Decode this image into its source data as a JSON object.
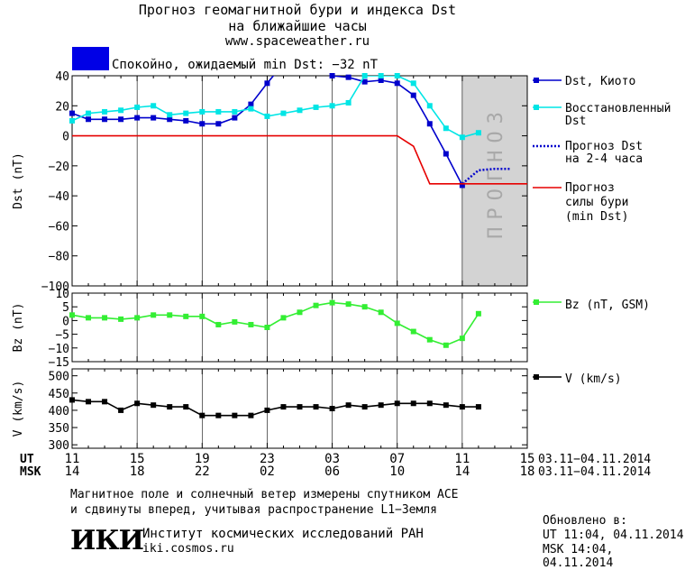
{
  "header": {
    "title_line1": "Прогноз геомагнитной бури и индекса Dst",
    "title_line2": "на ближайшие часы",
    "url": "www.spaceweather.ru",
    "status_color": "#0000e6",
    "status_text": "Спокойно, ожидаемый min Dst: −32 nT"
  },
  "time_axis": {
    "ut_label": "UT",
    "msk_label": "MSK",
    "ut_ticks": [
      "11",
      "15",
      "19",
      "23",
      "03",
      "07",
      "11",
      "15"
    ],
    "msk_ticks": [
      "14",
      "18",
      "22",
      "02",
      "06",
      "10",
      "14",
      "18"
    ],
    "date_range_ut": "03.11−04.11.2014",
    "date_range_msk": "03.11−04.11.2014"
  },
  "chart_data": [
    {
      "type": "line",
      "ylabel": "Dst (nT)",
      "ylim": [
        -100,
        40
      ],
      "yticks": [
        40,
        20,
        0,
        -20,
        -40,
        -60,
        -80,
        -100
      ],
      "xlim_hours": [
        11,
        39
      ],
      "forecast_region": {
        "x_start": 35,
        "x_end": 39,
        "label": "ПРОГНОЗ"
      },
      "series": [
        {
          "name": "Dst, Киото",
          "color": "#0000cc",
          "marker": "square",
          "x": [
            11,
            12,
            13,
            14,
            15,
            16,
            17,
            18,
            19,
            20,
            21,
            22,
            23,
            24,
            25,
            26,
            27,
            28,
            29,
            30,
            31,
            32,
            33,
            34,
            35
          ],
          "y": [
            15,
            11,
            11,
            11,
            12,
            12,
            11,
            10,
            8,
            8,
            12,
            21,
            35,
            48,
            48,
            45,
            40,
            39,
            36,
            37,
            35,
            27,
            8,
            -12,
            -33
          ]
        },
        {
          "name": "Восстановленный Dst",
          "color": "#00e5e5",
          "marker": "square",
          "x": [
            11,
            12,
            13,
            14,
            15,
            16,
            17,
            18,
            19,
            20,
            21,
            22,
            23,
            24,
            25,
            26,
            27,
            28,
            29,
            30,
            31,
            32,
            33,
            34,
            35,
            36
          ],
          "y": [
            10,
            15,
            16,
            17,
            19,
            20,
            14,
            15,
            16,
            16,
            16,
            18,
            13,
            15,
            17,
            19,
            20,
            22,
            40,
            40,
            40,
            35,
            20,
            5,
            -1,
            2
          ]
        },
        {
          "name": "Прогноз Dst на 2-4 часа",
          "color": "#0000cc",
          "dash": true,
          "x": [
            35,
            36,
            37,
            38
          ],
          "y": [
            -32,
            -23,
            -22,
            -22
          ]
        },
        {
          "name": "Прогноз силы бури (min Dst)",
          "color": "#e60000",
          "x": [
            11,
            31,
            32,
            33,
            39
          ],
          "y": [
            0,
            0,
            -7,
            -32,
            -32
          ]
        }
      ]
    },
    {
      "type": "line",
      "ylabel": "Bz (nT)",
      "ylim": [
        -15,
        10
      ],
      "yticks": [
        10,
        5,
        0,
        -5,
        -10,
        -15
      ],
      "xlim_hours": [
        11,
        39
      ],
      "series": [
        {
          "name": "Bz (nT, GSM)",
          "color": "#33ee33",
          "marker": "square",
          "x": [
            11,
            12,
            13,
            14,
            15,
            16,
            17,
            18,
            19,
            20,
            21,
            22,
            23,
            24,
            25,
            26,
            27,
            28,
            29,
            30,
            31,
            32,
            33,
            34,
            35,
            36
          ],
          "y": [
            2,
            1,
            1,
            0.5,
            1,
            2,
            2,
            1.5,
            1.5,
            -1.5,
            -0.5,
            -1.5,
            -2.5,
            1,
            3,
            5.5,
            6.5,
            6,
            5,
            3,
            -1,
            -4,
            -7,
            -9,
            -6.5,
            2.5
          ]
        }
      ]
    },
    {
      "type": "line",
      "ylabel": "V (km/s)",
      "ylim": [
        290,
        520
      ],
      "yticks": [
        500,
        450,
        400,
        350,
        300
      ],
      "xlim_hours": [
        11,
        39
      ],
      "series": [
        {
          "name": "V (km/s)",
          "color": "#000000",
          "marker": "square",
          "x": [
            11,
            12,
            13,
            14,
            15,
            16,
            17,
            18,
            19,
            20,
            21,
            22,
            23,
            24,
            25,
            26,
            27,
            28,
            29,
            30,
            31,
            32,
            33,
            34,
            35,
            36
          ],
          "y": [
            430,
            425,
            425,
            400,
            420,
            415,
            410,
            410,
            385,
            385,
            385,
            385,
            400,
            410,
            410,
            410,
            405,
            415,
            410,
            415,
            420,
            420,
            420,
            415,
            410,
            410
          ]
        }
      ]
    }
  ],
  "legend": {
    "dst_kyoto": "Dst, Киото",
    "restored_1": "Восстановленный",
    "restored_2": "Dst",
    "forecast_short_1": "Прогноз Dst",
    "forecast_short_2": "на 2-4 часа",
    "forecast_storm_1": "Прогноз",
    "forecast_storm_2": "силы бури",
    "forecast_storm_3": "(min Dst)",
    "bz": "Bz (nT, GSM)",
    "v": "V (km/s)"
  },
  "footer": {
    "note_line1": "Магнитное поле и солнечный ветер измерены спутником ACE",
    "note_line2": "и сдвинуты вперед, учитывая распространение L1−Земля",
    "logo_text": "ИКИ",
    "institute": "Институт космических исследований РАН",
    "site": "iki.cosmos.ru",
    "updated_label": "Обновлено в:",
    "updated_ut": "UT  11:04, 04.11.2014",
    "updated_msk": "MSK 14:04, 04.11.2014"
  }
}
